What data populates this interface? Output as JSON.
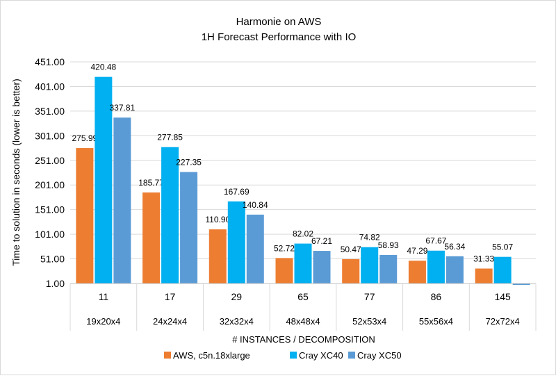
{
  "chart_data": {
    "type": "bar",
    "title": [
      "Harmonie on AWS",
      "1H Forecast Performance  with IO"
    ],
    "xlabel": "# INSTANCES / DECOMPOSITION",
    "ylabel": "Time to solution in seconds (lower is better)",
    "ylim": [
      1,
      451
    ],
    "yticks": [
      "451.00",
      "401.00",
      "351.00",
      "301.00",
      "251.00",
      "201.00",
      "151.00",
      "101.00",
      "51.00",
      "1.00"
    ],
    "ytick_values": [
      451,
      401,
      351,
      301,
      251,
      201,
      151,
      101,
      51,
      1
    ],
    "grid": true,
    "legend_position": "bottom",
    "categories": [
      "11",
      "17",
      "29",
      "65",
      "77",
      "86",
      "145"
    ],
    "categories_row2": [
      "19x20x4",
      "24x24x4",
      "32x32x4",
      "48x48x4",
      "52x53x4",
      "55x56x4",
      "72x72x4"
    ],
    "series": [
      {
        "name": "AWS, c5n.18xlarge",
        "color": "#ED7D31",
        "values": [
          275.99,
          185.77,
          110.9,
          52.72,
          50.47,
          47.29,
          31.33
        ],
        "labels": [
          "275.99",
          "185.77",
          "110.90",
          "52.72",
          "50.47",
          "47.29",
          "31.33"
        ]
      },
      {
        "name": "Cray XC40",
        "color": "#00B0F0",
        "values": [
          420.48,
          277.85,
          167.69,
          82.02,
          74.82,
          67.67,
          55.07
        ],
        "labels": [
          "420.48",
          "277.85",
          "167.69",
          "82.02",
          "74.82",
          "67.67",
          "55.07"
        ]
      },
      {
        "name": "Cray XC50",
        "color": "#5B9BD5",
        "values": [
          337.81,
          227.35,
          140.84,
          67.21,
          58.93,
          56.34,
          null
        ],
        "labels": [
          "337.81",
          "227.35",
          "140.84",
          "67.21",
          "58.93",
          "56.34",
          ""
        ]
      }
    ]
  }
}
